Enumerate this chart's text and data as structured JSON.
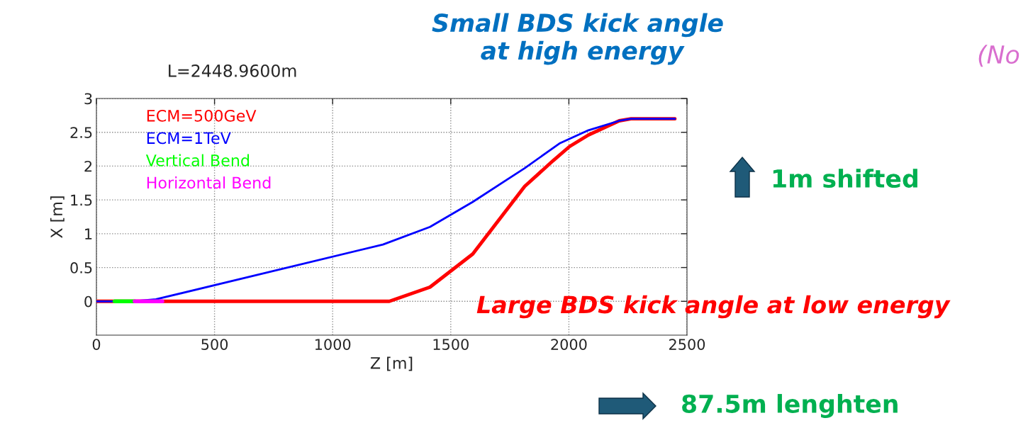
{
  "chart_data": {
    "type": "line",
    "title": "L=2448.9600m",
    "xlabel": "Z [m]",
    "ylabel": "X [m]",
    "xlim": [
      0,
      2500
    ],
    "ylim": [
      -0.5,
      3
    ],
    "xticks": [
      0,
      500,
      1000,
      1500,
      2000,
      2500
    ],
    "yticks": [
      0,
      0.5,
      1,
      1.5,
      2,
      2.5,
      3
    ],
    "grid": true,
    "legend": "top left",
    "marker": "none",
    "line_style": "solid",
    "series": [
      {
        "name": "ECM=500GeV",
        "color": "#ff0000",
        "x": [
          0,
          1240,
          1412,
          1593,
          1813,
          1933,
          2003,
          2083,
          2213,
          2263,
          2449
        ],
        "values": [
          0,
          0,
          0.21,
          0.7,
          1.7,
          2.08,
          2.29,
          2.46,
          2.67,
          2.7,
          2.7
        ]
      },
      {
        "name": "ECM=1TeV",
        "color": "#0000ff",
        "x": [
          0,
          150,
          252,
          1213,
          1412,
          1593,
          1813,
          1963,
          2083,
          2213,
          2263,
          2449
        ],
        "values": [
          0,
          0,
          0.03,
          0.84,
          1.1,
          1.47,
          1.97,
          2.34,
          2.53,
          2.67,
          2.7,
          2.7
        ]
      },
      {
        "name": "Vertical Bend",
        "color": "#00ff00",
        "x": [
          77,
          162
        ],
        "values": [
          0,
          0
        ]
      },
      {
        "name": "Horizontal Bend",
        "color": "#ff00ff",
        "x": [
          162,
          279
        ],
        "values": [
          0,
          0
        ]
      }
    ],
    "annotations": [
      "Small BDS kick angle\n at high energy",
      "(No",
      "1m shifted",
      "Large BDS kick angle at low energy",
      "87.5m lenghten"
    ]
  }
}
